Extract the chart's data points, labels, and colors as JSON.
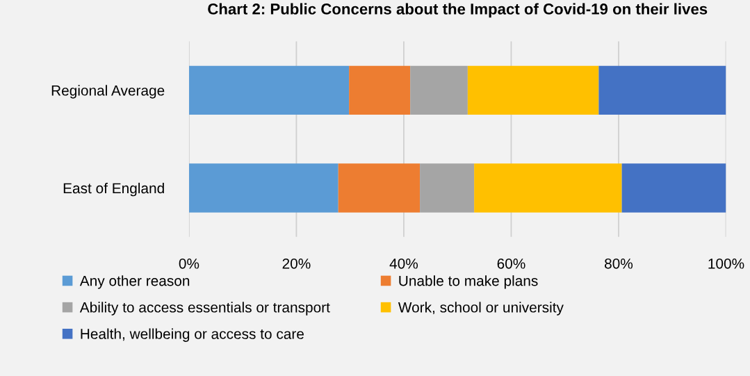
{
  "chart_data": {
    "type": "bar",
    "orientation": "horizontal",
    "stacked": true,
    "title": "Chart 2: Public Concerns about the Impact of Covid-19 on their lives",
    "categories": [
      "Regional Average",
      "East of England"
    ],
    "series": [
      {
        "name": "Any other reason",
        "color": "#5b9bd5",
        "values": [
          29.8,
          27.8
        ]
      },
      {
        "name": "Unable to make plans",
        "color": "#ed7d31",
        "values": [
          11.4,
          15.2
        ]
      },
      {
        "name": "Ability to access essentials or transport",
        "color": "#a5a5a5",
        "values": [
          10.7,
          10.1
        ]
      },
      {
        "name": "Work, school or university",
        "color": "#ffc000",
        "values": [
          24.4,
          27.5
        ]
      },
      {
        "name": "Health, wellbeing or access to care",
        "color": "#4472c4",
        "values": [
          23.7,
          19.4
        ]
      }
    ],
    "xlim": [
      0,
      100
    ],
    "xticks": [
      {
        "value": 0,
        "label": "0%"
      },
      {
        "value": 20,
        "label": "20%"
      },
      {
        "value": 40,
        "label": "40%"
      },
      {
        "value": 60,
        "label": "60%"
      },
      {
        "value": 80,
        "label": "80%"
      },
      {
        "value": 100,
        "label": "100%"
      }
    ],
    "grid": "x",
    "legend": "bottom"
  }
}
